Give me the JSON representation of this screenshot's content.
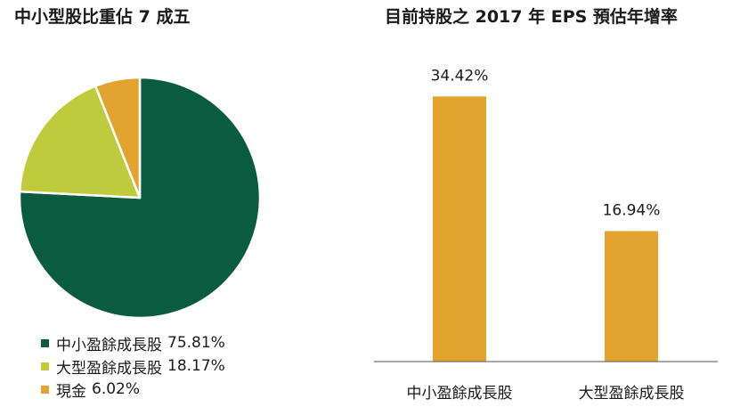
{
  "left_panel": {
    "title": "中小型股比重佔 7 成五"
  },
  "right_panel": {
    "title": "目前持股之 2017 年 EPS 預估年增率"
  },
  "colors": {
    "dark_green": "#0a5c41",
    "lime": "#bfca3c",
    "orange": "#e3a42f"
  },
  "chart_data": [
    {
      "type": "pie",
      "title": "中小型股比重佔 7 成五",
      "slices": [
        {
          "label": "中小盈餘成長股",
          "value": 75.81,
          "display": "75.81%",
          "color": "#0a5c41"
        },
        {
          "label": "大型盈餘成長股",
          "value": 18.17,
          "display": "18.17%",
          "color": "#bfca3c"
        },
        {
          "label": "現金",
          "value": 6.02,
          "display": "6.02%",
          "color": "#e3a42f"
        }
      ],
      "start_angle": "12 o'clock",
      "direction": "clockwise",
      "legend_position": "bottom-left"
    },
    {
      "type": "bar",
      "title": "目前持股之 2017 年 EPS 預估年增率",
      "categories": [
        "中小盈餘成長股",
        "大型盈餘成長股"
      ],
      "values": [
        34.42,
        16.94
      ],
      "data_labels": [
        "34.42%",
        "16.94%"
      ],
      "color": "#e3a42f",
      "ylim": [
        0,
        40
      ],
      "grid": false,
      "y_axis_visible": false
    }
  ]
}
